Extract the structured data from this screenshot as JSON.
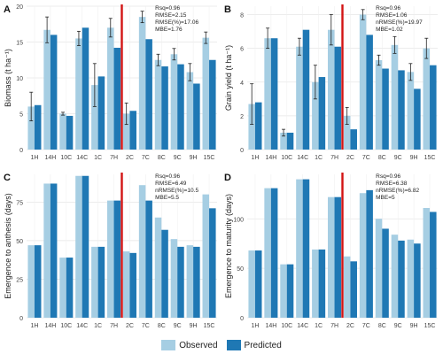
{
  "colors": {
    "observed": "#a6cee3",
    "predicted": "#1f78b4",
    "divider": "#d21414",
    "grid": "#e6e6e6"
  },
  "legend": [
    {
      "label": "Observed",
      "color": "#a6cee3"
    },
    {
      "label": "Predicted",
      "color": "#1f78b4"
    }
  ],
  "chart_data": [
    {
      "panel": "A",
      "type": "bar",
      "ylabel": "Biomass (t ha⁻¹)",
      "categories": [
        "1H",
        "14H",
        "10C",
        "14C",
        "1C",
        "7H",
        "2C",
        "7C",
        "8C",
        "9C",
        "9H",
        "15C"
      ],
      "ylim": [
        0,
        20
      ],
      "yticks": [
        0,
        5,
        10,
        15,
        20
      ],
      "divider_after": "7H",
      "series": [
        {
          "name": "Observed",
          "values": [
            6.0,
            16.7,
            5.0,
            15.5,
            9.0,
            17.0,
            5.0,
            18.5,
            12.5,
            13.3,
            10.8,
            15.6
          ],
          "errors": [
            2.0,
            1.8,
            0.2,
            1.0,
            3.0,
            1.3,
            1.5,
            0.8,
            0.8,
            0.8,
            1.2,
            0.8
          ]
        },
        {
          "name": "Predicted",
          "values": [
            6.2,
            16.0,
            4.7,
            17.0,
            10.2,
            14.2,
            5.4,
            15.4,
            11.6,
            11.9,
            9.2,
            12.5
          ]
        }
      ],
      "stats": [
        "Rsq=0.96",
        "RMSE=2.15",
        "RMSE(%)=17.06",
        "MBE=1.76"
      ]
    },
    {
      "panel": "B",
      "type": "bar",
      "ylabel": "Grain yield (t ha⁻¹)",
      "categories": [
        "1H",
        "14H",
        "10C",
        "14C",
        "1C",
        "7H",
        "2C",
        "7C",
        "8C",
        "9C",
        "9H",
        "15C"
      ],
      "ylim": [
        0,
        8.5
      ],
      "yticks": [
        0,
        2,
        4,
        6,
        8
      ],
      "divider_after": "7H",
      "series": [
        {
          "name": "Observed",
          "values": [
            2.7,
            6.6,
            1.0,
            6.1,
            4.0,
            7.1,
            2.0,
            8.0,
            5.3,
            6.2,
            4.6,
            6.0
          ],
          "errors": [
            1.2,
            0.6,
            0.2,
            0.5,
            1.0,
            0.9,
            0.5,
            0.3,
            0.3,
            0.5,
            0.5,
            0.6
          ]
        },
        {
          "name": "Predicted",
          "values": [
            2.8,
            6.6,
            1.0,
            7.1,
            4.3,
            6.1,
            1.2,
            6.8,
            4.8,
            4.7,
            3.6,
            5.0
          ]
        }
      ],
      "stats": [
        "Rsq=0.96",
        "RMSE=1.06",
        "nRMSE(%)=19.97",
        "MBE=1.02"
      ]
    },
    {
      "panel": "C",
      "type": "bar",
      "ylabel": "Emergence to anthesis (days)",
      "categories": [
        "1H",
        "14H",
        "10C",
        "14C",
        "1C",
        "7H",
        "2C",
        "7C",
        "8C",
        "9C",
        "9H",
        "15C"
      ],
      "ylim": [
        0,
        93
      ],
      "yticks": [
        0,
        25,
        50,
        75
      ],
      "divider_after": "7H",
      "series": [
        {
          "name": "Observed",
          "values": [
            47,
            87,
            39,
            92,
            46,
            76,
            43,
            86,
            65,
            51,
            47,
            80
          ]
        },
        {
          "name": "Predicted",
          "values": [
            47,
            87,
            39,
            92,
            46,
            76,
            42,
            76,
            57,
            46,
            46,
            71
          ]
        }
      ],
      "stats": [
        "Rsq=0.96",
        "RMSE=6.49",
        "nRMSE(%)=10.5",
        "MBE=5.5"
      ]
    },
    {
      "panel": "D",
      "type": "bar",
      "ylabel": "Emergence to maturity (days)",
      "categories": [
        "1H",
        "14H",
        "10C",
        "14C",
        "1C",
        "7H",
        "2C",
        "7C",
        "8C",
        "9C",
        "9H",
        "15C"
      ],
      "ylim": [
        0,
        145
      ],
      "yticks": [
        0,
        50,
        100
      ],
      "divider_after": "7H",
      "series": [
        {
          "name": "Observed",
          "values": [
            68,
            131,
            54,
            140,
            69,
            122,
            62,
            126,
            100,
            84,
            79,
            111
          ]
        },
        {
          "name": "Predicted",
          "values": [
            68,
            131,
            54,
            140,
            69,
            122,
            57,
            129,
            90,
            78,
            75,
            107
          ]
        }
      ],
      "stats": [
        "Rsq=0.96",
        "RMSE=6.38",
        "nRMSE(%)=6.82",
        "MBE=5"
      ]
    }
  ]
}
